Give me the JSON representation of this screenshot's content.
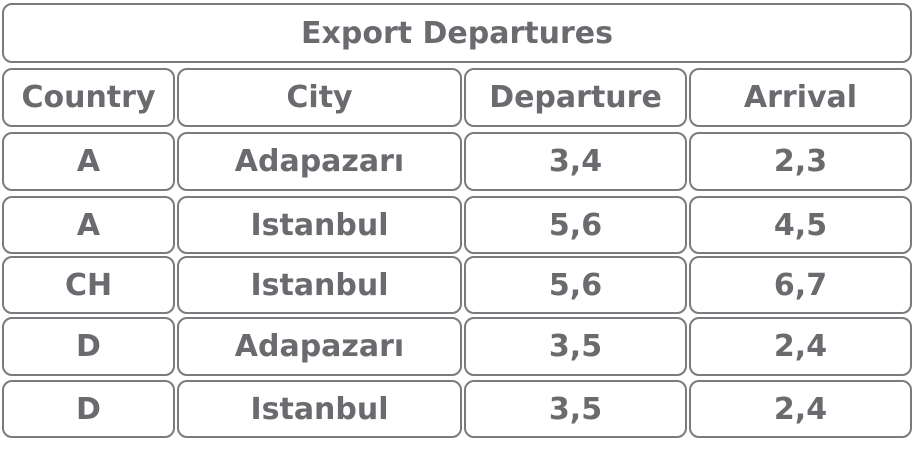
{
  "table": {
    "title": "Export Departures",
    "header": [
      "Country",
      "City",
      "Departure",
      "Arrival"
    ],
    "rows": [
      [
        "A",
        "Adapazarı",
        "3,4",
        "2,3"
      ],
      [
        "A",
        "Istanbul",
        "5,6",
        "4,5"
      ],
      [
        "CH",
        "Istanbul",
        "5,6",
        "6,7"
      ],
      [
        "D",
        "Adapazarı",
        "3,5",
        "2,4"
      ],
      [
        "D",
        "Istanbul",
        "3,5",
        "2,4"
      ]
    ]
  }
}
